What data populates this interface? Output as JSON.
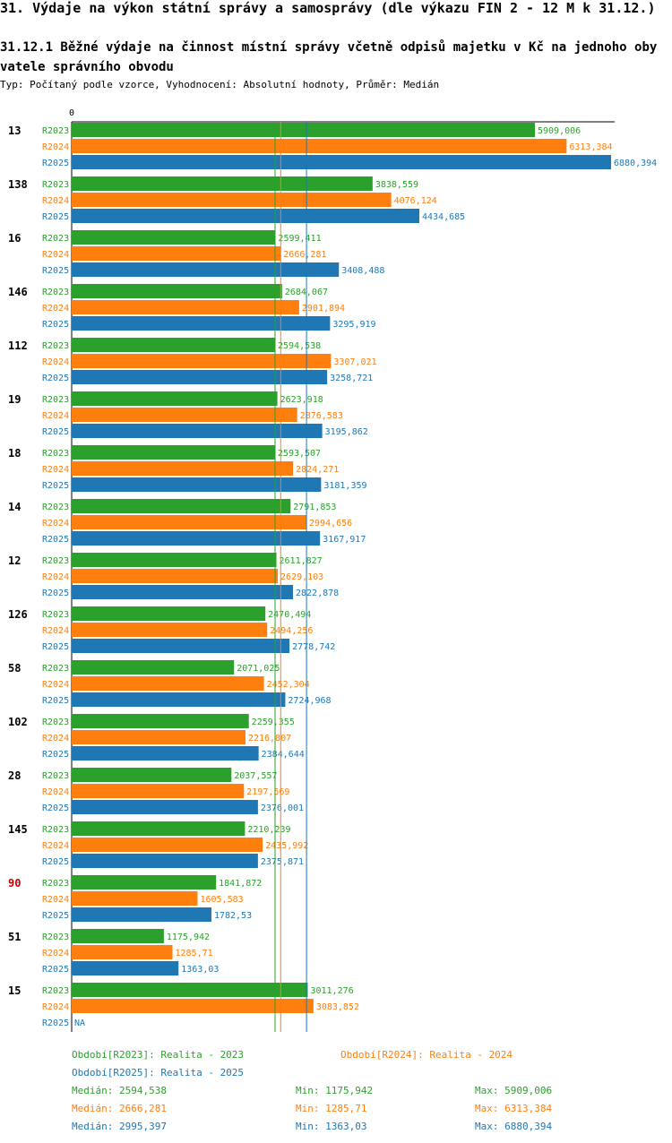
{
  "header": {
    "title": "31. Výdaje na výkon státní správy a samosprávy (dle výkazu FIN 2 - 12 M k 31.12.)",
    "subtitle": "31.12.1 Běžné výdaje na činnost místní správy včetně odpisů majetku v Kč na jednoho obyvatele správního obvodu",
    "type_line": "Typ: Počítaný podle vzorce, Vyhodnocení: Absolutní hodnoty, Průměr: Medián"
  },
  "colors": {
    "R2023": "#2ca02c",
    "R2024": "#ff7f0e",
    "R2025": "#1f77b4",
    "highlight": "#cc0000",
    "text": "#000000"
  },
  "chart_data": {
    "type": "bar",
    "orientation": "horizontal",
    "axis_zero_label": "0",
    "xlim": [
      0,
      6880.394
    ],
    "series_names": [
      "R2023",
      "R2024",
      "R2025"
    ],
    "categories": [
      "13",
      "138",
      "16",
      "146",
      "112",
      "19",
      "18",
      "14",
      "12",
      "126",
      "58",
      "102",
      "28",
      "145",
      "90",
      "51",
      "15"
    ],
    "highlight_category": "90",
    "series": [
      {
        "name": "R2023",
        "values": [
          5909.006,
          3838.559,
          2599.411,
          2684.067,
          2594.538,
          2623.918,
          2593.507,
          2791.853,
          2611.827,
          2470.494,
          2071.025,
          2259.355,
          2037.557,
          2210.239,
          1841.872,
          1175.942,
          3011.276
        ],
        "labels": [
          "5909,006",
          "3838,559",
          "2599,411",
          "2684,067",
          "2594,538",
          "2623,918",
          "2593,507",
          "2791,853",
          "2611,827",
          "2470,494",
          "2071,025",
          "2259,355",
          "2037,557",
          "2210,239",
          "1841,872",
          "1175,942",
          "3011,276"
        ]
      },
      {
        "name": "R2024",
        "values": [
          6313.384,
          4076.124,
          2666.281,
          2901.894,
          3307.021,
          2876.583,
          2824.271,
          2994.656,
          2629.103,
          2494.256,
          2452.304,
          2216.807,
          2197.569,
          2435.992,
          1605.583,
          1285.71,
          3083.852
        ],
        "labels": [
          "6313,384",
          "4076,124",
          "2666,281",
          "2901,894",
          "3307,021",
          "2876,583",
          "2824,271",
          "2994,656",
          "2629,103",
          "2494,256",
          "2452,304",
          "2216,807",
          "2197,569",
          "2435,992",
          "1605,583",
          "1285,71",
          "3083,852"
        ]
      },
      {
        "name": "R2025",
        "values": [
          6880.394,
          4434.685,
          3408.488,
          3295.919,
          3258.721,
          3195.862,
          3181.359,
          3167.917,
          2822.878,
          2778.742,
          2724.968,
          2384.644,
          2376.001,
          2375.871,
          1782.53,
          1363.03,
          null
        ],
        "labels": [
          "6880,394",
          "4434,685",
          "3408,488",
          "3295,919",
          "3258,721",
          "3195,862",
          "3181,359",
          "3167,917",
          "2822,878",
          "2778,742",
          "2724,968",
          "2384,644",
          "2376,001",
          "2375,871",
          "1782,53",
          "1363,03",
          "NA"
        ]
      }
    ],
    "medians": {
      "R2023": 2594.538,
      "R2024": 2666.281,
      "R2025": 2995.397
    }
  },
  "legend": {
    "period_R2023": "Období[R2023]: Realita - 2023",
    "period_R2024": "Období[R2024]: Realita - 2024",
    "period_R2025": "Období[R2025]: Realita - 2025",
    "stats": [
      {
        "median": "Medián: 2594,538",
        "min": "Min: 1175,942",
        "max": "Max: 5909,006"
      },
      {
        "median": "Medián: 2666,281",
        "min": "Min: 1285,71",
        "max": "Max: 6313,384"
      },
      {
        "median": "Medián: 2995,397",
        "min": "Min: 1363,03",
        "max": "Max: 6880,394"
      }
    ]
  }
}
